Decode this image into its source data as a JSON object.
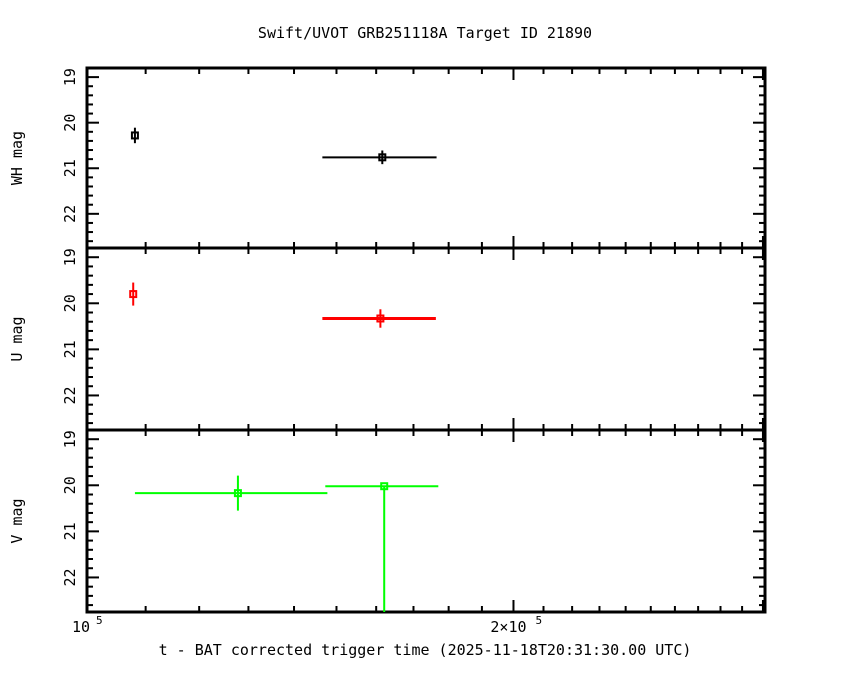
{
  "chart_data": {
    "type": "scatter",
    "title": "Swift/UVOT GRB251118A Target ID 21890",
    "xlabel": "t - BAT corrected trigger time (2025-11-18T20:31:30.00 UTC)",
    "xscale": "log",
    "xlim": [
      100000,
      301000
    ],
    "xticks": [
      {
        "value": 100000,
        "label": "10",
        "exp": "5"
      },
      {
        "value": 200000,
        "label": "2×10",
        "exp": "5"
      }
    ],
    "grid": false,
    "panels": [
      {
        "ylabel": "WH mag",
        "ylim": [
          22.75,
          18.8
        ],
        "yticks": [
          19,
          20,
          21,
          22
        ],
        "color": "#000000",
        "points": [
          {
            "x": 108100,
            "xlo": 108100,
            "xhi": 108100,
            "y": 20.28,
            "yerr": 0.17
          },
          {
            "x": 161600,
            "xlo": 146600,
            "xhi": 176500,
            "y": 20.76,
            "yerr": 0.15
          }
        ]
      },
      {
        "ylabel": "U mag",
        "ylim": [
          22.75,
          18.8
        ],
        "yticks": [
          19,
          20,
          21,
          22
        ],
        "color": "#ff0000",
        "points": [
          {
            "x": 107800,
            "xlo": 107800,
            "xhi": 107800,
            "y": 19.8,
            "yerr": 0.25
          },
          {
            "x": 161100,
            "xlo": 146600,
            "xhi": 176300,
            "y": 20.33,
            "yerr": 0.2
          }
        ]
      },
      {
        "ylabel": "V mag",
        "ylim": [
          22.75,
          18.8
        ],
        "yticks": [
          19,
          20,
          21,
          22
        ],
        "color": "#00ff00",
        "points": [
          {
            "x": 127800,
            "xlo": 108100,
            "xhi": 147800,
            "y": 20.17,
            "yerr": 0.38
          },
          {
            "x": 162100,
            "xlo": 147300,
            "xhi": 177000,
            "y": 20.02,
            "yerr_minus": 0,
            "yerr_plus": 3.0
          }
        ]
      }
    ]
  }
}
